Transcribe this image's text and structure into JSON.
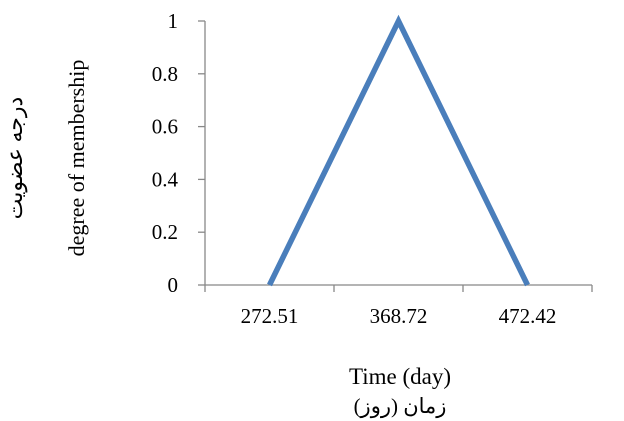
{
  "chart_data": {
    "type": "line",
    "categories": [
      "272.51",
      "368.72",
      "472.42"
    ],
    "x": [
      272.51,
      368.72,
      472.42
    ],
    "series": [
      {
        "values": [
          0,
          1,
          0
        ],
        "color": "#4a7ebb"
      }
    ],
    "yticks": [
      "0",
      "0.2",
      "0.4",
      "0.6",
      "0.8",
      "1"
    ],
    "ylim": [
      0,
      1
    ],
    "ylabel": "degree of membership",
    "ylabel_fa": "درجه عضویت",
    "xlabel": "Time (day)",
    "xlabel_fa": "زمان (روز)",
    "grid": false,
    "legend": "none"
  }
}
